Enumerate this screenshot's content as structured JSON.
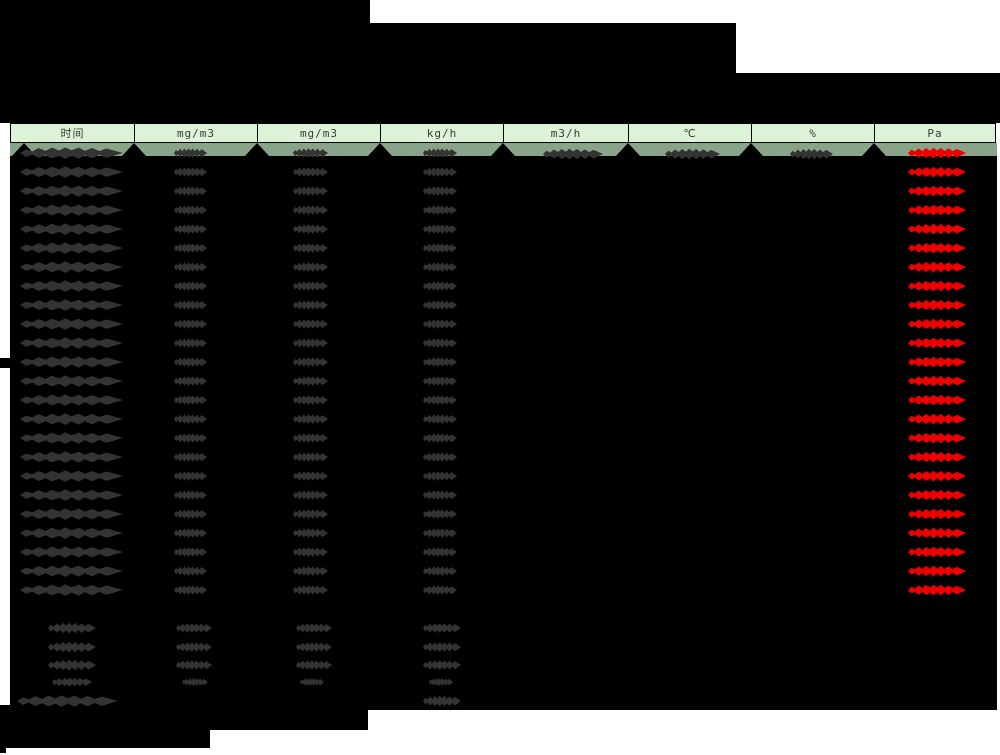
{
  "table": {
    "redacted": true,
    "columns": [
      {
        "label": "时间"
      },
      {
        "label": "mg/m3"
      },
      {
        "label": "mg/m3"
      },
      {
        "label": "kg/h"
      },
      {
        "label": "m3/h"
      },
      {
        "label": "℃"
      },
      {
        "label": "%"
      },
      {
        "label": "Pa"
      }
    ],
    "main_row_count": 24,
    "summary_regular_row_count": 4,
    "summary_footer_row_count": 1
  },
  "colors": {
    "redaction_black": "#000000",
    "redaction_dark": "#333333",
    "alarm_red": "#ee0000",
    "header_fill": "#ddf3d8",
    "first_row_band": "#8aa48a"
  }
}
